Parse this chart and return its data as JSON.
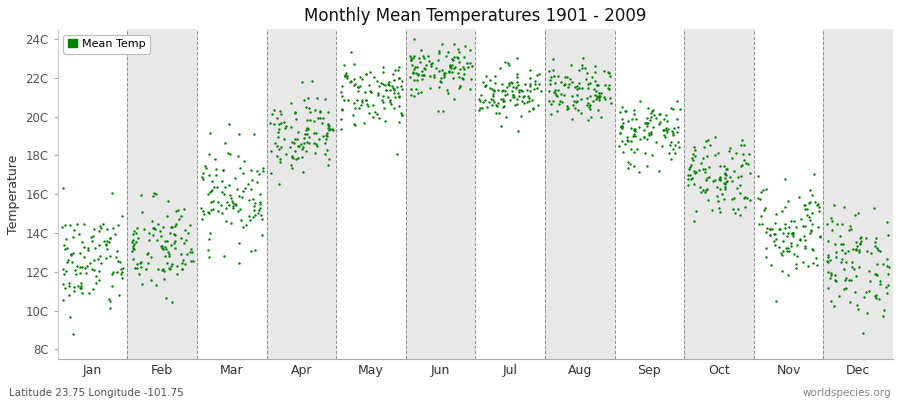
{
  "title": "Monthly Mean Temperatures 1901 - 2009",
  "ylabel": "Temperature",
  "xlabel_labels": [
    "Jan",
    "Feb",
    "Mar",
    "Apr",
    "May",
    "Jun",
    "Jul",
    "Aug",
    "Sep",
    "Oct",
    "Nov",
    "Dec"
  ],
  "ytick_labels": [
    "8C",
    "10C",
    "12C",
    "14C",
    "16C",
    "18C",
    "20C",
    "22C",
    "24C"
  ],
  "ytick_values": [
    8,
    10,
    12,
    14,
    16,
    18,
    20,
    22,
    24
  ],
  "ylim": [
    7.5,
    24.5
  ],
  "dot_color": "#008000",
  "dot_size": 3,
  "background_color": "#ffffff",
  "band_colors": [
    "#ffffff",
    "#e8e8e8"
  ],
  "grid_color": "#666666",
  "subtitle": "Latitude 23.75 Longitude -101.75",
  "watermark": "worldspecies.org",
  "legend_label": "Mean Temp",
  "n_years": 109,
  "monthly_means": [
    12.5,
    13.2,
    16.0,
    19.2,
    21.2,
    22.3,
    21.3,
    21.2,
    19.2,
    17.0,
    14.2,
    12.5
  ],
  "monthly_stds": [
    1.4,
    1.3,
    1.3,
    1.0,
    0.9,
    0.7,
    0.7,
    0.7,
    0.9,
    1.1,
    1.3,
    1.4
  ]
}
